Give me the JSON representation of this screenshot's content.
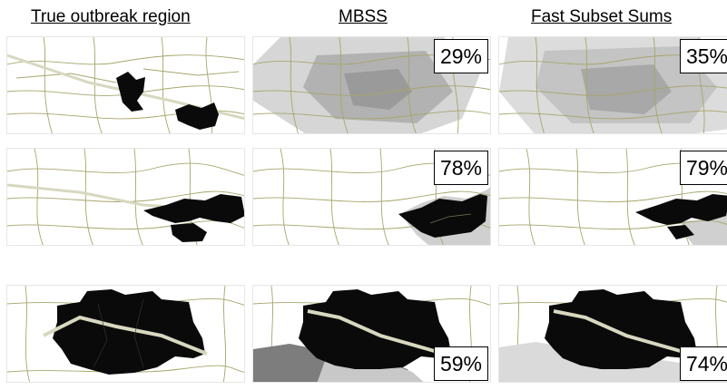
{
  "columns": {
    "truth": "True outbreak region",
    "mbss": "MBSS",
    "fss": "Fast Subset Sums"
  },
  "rows": [
    {
      "mbss_pct": "29%",
      "fss_pct": "35%"
    },
    {
      "mbss_pct": "78%",
      "fss_pct": "79%"
    },
    {
      "mbss_pct": "59%",
      "fss_pct": "74%"
    }
  ],
  "colors": {
    "outbreak": "#0a0a0a",
    "map_lines": "#a6a66c",
    "road": "#d8d8c0",
    "shade_light": "#d6d6d6",
    "shade_mid": "#b2b2b2",
    "shade_dark": "#7d7d7d"
  }
}
